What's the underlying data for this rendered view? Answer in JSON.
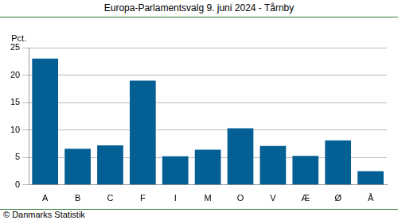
{
  "chart_data": {
    "type": "bar",
    "title": "Europa-Parlamentsvalg 9. juni 2024 - Tårnby",
    "ylabel": "Pct.",
    "source": "© Danmarks Statistik",
    "categories": [
      "A",
      "B",
      "C",
      "F",
      "I",
      "M",
      "O",
      "V",
      "Æ",
      "Ø",
      "Å"
    ],
    "values": [
      23.0,
      6.6,
      7.2,
      19.0,
      5.2,
      6.4,
      10.3,
      7.1,
      5.3,
      8.1,
      2.5
    ],
    "color": "#035f94",
    "ylim": [
      0,
      25
    ],
    "yticks": [
      0,
      5,
      10,
      15,
      20,
      25
    ],
    "grid": true
  }
}
